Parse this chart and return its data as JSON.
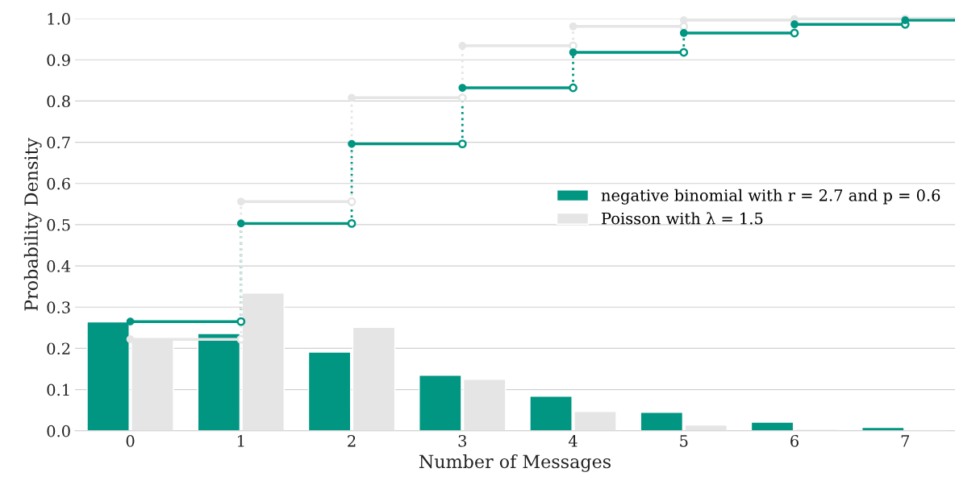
{
  "chart_data": {
    "type": "bar",
    "xlabel": "Number of Messages",
    "ylabel": "Probability Density",
    "x": [
      0,
      1,
      2,
      3,
      4,
      5,
      6,
      7
    ],
    "xlim": [
      -0.5,
      7.45
    ],
    "xticks": [
      0,
      1,
      2,
      3,
      4,
      5,
      6,
      7
    ],
    "ylim": [
      0,
      1
    ],
    "yticks": [
      {
        "value": 0,
        "label": "0.0"
      },
      0.1,
      0.2,
      0.3,
      0.4,
      0.5,
      0.6,
      0.7,
      0.8,
      0.9,
      {
        "value": 1,
        "label": "1.0"
      }
    ],
    "grid": "y",
    "legend": "right",
    "marker": "circle",
    "series": [
      {
        "name": "negative binomial with r = 2.7 and p = 0.6",
        "color": "#009682",
        "values": [
          0.264,
          0.236,
          0.191,
          0.135,
          0.084,
          0.045,
          0.021,
          0.008
        ]
      },
      {
        "name": "Poisson with λ = 1.5",
        "color": "#e5e5e5",
        "values": [
          0.223,
          0.334,
          0.251,
          0.125,
          0.047,
          0.014,
          0.004,
          0.001
        ]
      },
      {
        "type": "step",
        "color": "#009682",
        "x": [
          0,
          1,
          2,
          3,
          4,
          5,
          6,
          7,
          7.45
        ],
        "values": [
          0.265,
          0.503,
          0.696,
          0.832,
          0.918,
          0.965,
          0.986,
          0.996,
          0.996
        ]
      },
      {
        "type": "step",
        "color": "#e5e5e5",
        "x": [
          0,
          1,
          2,
          3,
          4,
          5,
          6,
          7,
          7.45
        ],
        "values": [
          0.222,
          0.556,
          0.808,
          0.934,
          0.981,
          0.996,
          0.999,
          1.0,
          1.0
        ]
      }
    ]
  }
}
